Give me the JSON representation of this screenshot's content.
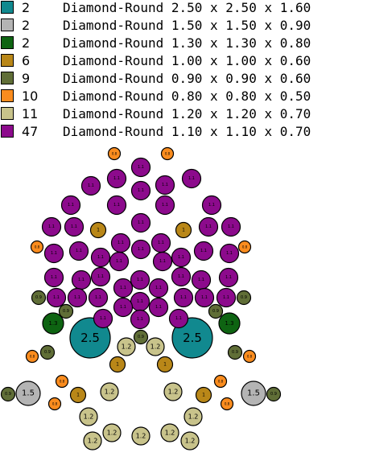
{
  "legend": [
    {
      "count": "2",
      "color": "#11898f",
      "desc": "Diamond-Round 2.50 x 2.50 x 1.60"
    },
    {
      "count": "2",
      "color": "#b4b4b4",
      "desc": "Diamond-Round 1.50 x 1.50 x 0.90"
    },
    {
      "count": "2",
      "color": "#0e6412",
      "desc": "Diamond-Round 1.30 x 1.30 x 0.80"
    },
    {
      "count": "6",
      "color": "#b98718",
      "desc": "Diamond-Round 1.00 x 1.00 x 0.60"
    },
    {
      "count": "9",
      "color": "#606e37",
      "desc": "Diamond-Round 0.90 x 0.90 x 0.60"
    },
    {
      "count": "10",
      "color": "#fa8c1e",
      "desc": "Diamond-Round 0.80 x 0.80 x 0.50"
    },
    {
      "count": "11",
      "color": "#c8c38b",
      "desc": "Diamond-Round 1.20 x 1.20 x 0.70"
    },
    {
      "count": "47",
      "color": "#8c0a8c",
      "desc": "Diamond-Round 1.10 x 1.10 x 0.70"
    }
  ],
  "stone_labels": {
    "s25": "2.5",
    "s15": "1.5",
    "s13": "1.3",
    "s10": "1",
    "s09": "0.9",
    "s08": "0.8",
    "s12": "1.2",
    "s11": "1.1"
  }
}
